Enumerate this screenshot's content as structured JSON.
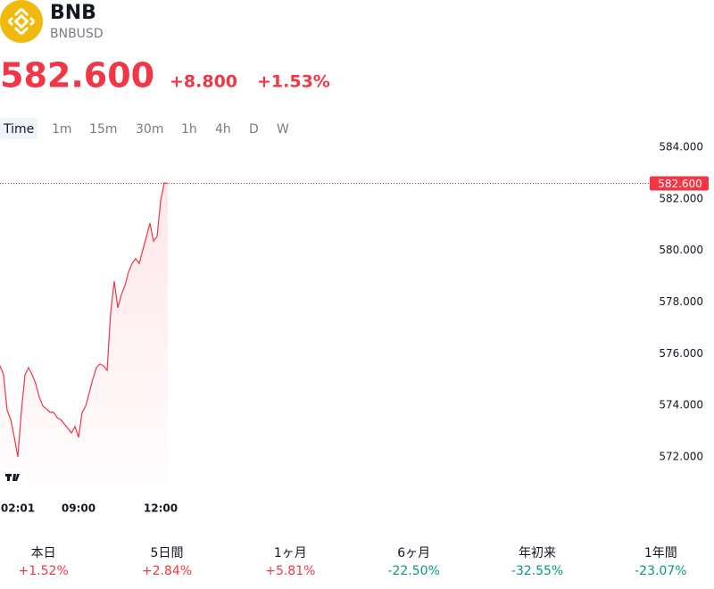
{
  "header": {
    "name": "BNB",
    "symbol": "BNBUSD",
    "price": "582.600",
    "change": "+8.800",
    "change_pct": "+1.53%",
    "color": "#f23645"
  },
  "tabs": {
    "items": [
      "Time",
      "1m",
      "15m",
      "30m",
      "1h",
      "4h",
      "D",
      "W"
    ],
    "active": 0
  },
  "chart_data": {
    "type": "line",
    "categories": [
      null,
      null,
      null,
      null,
      null,
      "02:01",
      null,
      null,
      null,
      null,
      null,
      null,
      null,
      null,
      null,
      null,
      null,
      null,
      null,
      null,
      null,
      null,
      "09:00",
      null,
      null,
      null,
      null,
      null,
      null,
      null,
      null,
      null,
      null,
      null,
      null,
      null,
      null,
      null,
      null,
      null,
      null,
      null,
      null,
      null,
      null,
      "12:00",
      null,
      null
    ],
    "series": [
      {
        "name": "BNBUSD",
        "color": "#f23645",
        "values": [
          575.53,
          575.18,
          573.8,
          573.45,
          572.76,
          572.0,
          573.8,
          575.18,
          575.46,
          575.18,
          574.84,
          574.32,
          573.97,
          573.87,
          573.73,
          573.73,
          573.52,
          573.45,
          573.28,
          573.11,
          572.93,
          573.18,
          572.76,
          573.73,
          573.97,
          574.49,
          575.01,
          575.46,
          575.6,
          575.53,
          575.35,
          577.6,
          578.81,
          577.78,
          578.29,
          578.64,
          579.16,
          579.5,
          579.68,
          579.5,
          580.02,
          580.54,
          581.06,
          580.37,
          580.54,
          581.93,
          582.62,
          582.6
        ]
      }
    ],
    "ylim": [
      571,
      584
    ],
    "yticks": [
      {
        "value": 572,
        "label": "572.000"
      },
      {
        "value": 574,
        "label": "574.000"
      },
      {
        "value": 576,
        "label": "576.000"
      },
      {
        "value": 578,
        "label": "578.000"
      },
      {
        "value": 580,
        "label": "580.000"
      },
      {
        "value": 582,
        "label": "582.000"
      },
      {
        "value": 584,
        "label": "584.000"
      }
    ],
    "grid": false
  },
  "performance": [
    {
      "label": "本日",
      "change": "+1.52%",
      "color": "#f23645"
    },
    {
      "label": "5日間",
      "change": "+2.84%",
      "color": "#f23645"
    },
    {
      "label": "1ヶ月",
      "change": "+5.81%",
      "color": "#f23645"
    },
    {
      "label": "6ヶ月",
      "change": "-22.50%",
      "color": "#089981"
    },
    {
      "label": "年初来",
      "change": "-32.55%",
      "color": "#089981"
    },
    {
      "label": "1年間",
      "change": "-23.07%",
      "color": "#089981"
    }
  ]
}
